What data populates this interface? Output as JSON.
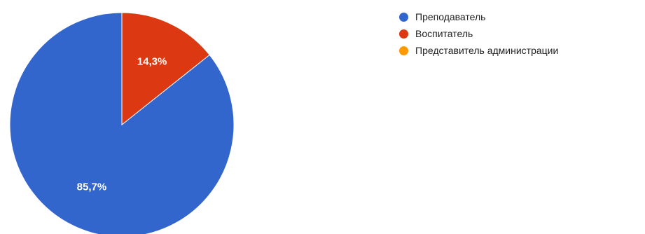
{
  "chart_data": {
    "type": "pie",
    "title": "",
    "slices": [
      {
        "label": "Преподаватель",
        "value": 85.7,
        "display": "85,7%",
        "color": "#3366cc"
      },
      {
        "label": "Воспитатель",
        "value": 14.3,
        "display": "14,3%",
        "color": "#dc3912"
      },
      {
        "label": "Представитель администрации",
        "value": 0,
        "display": "",
        "color": "#ff9900"
      }
    ],
    "legend_position": "right",
    "start_angle_deg": 90,
    "direction": "counterclockwise"
  }
}
